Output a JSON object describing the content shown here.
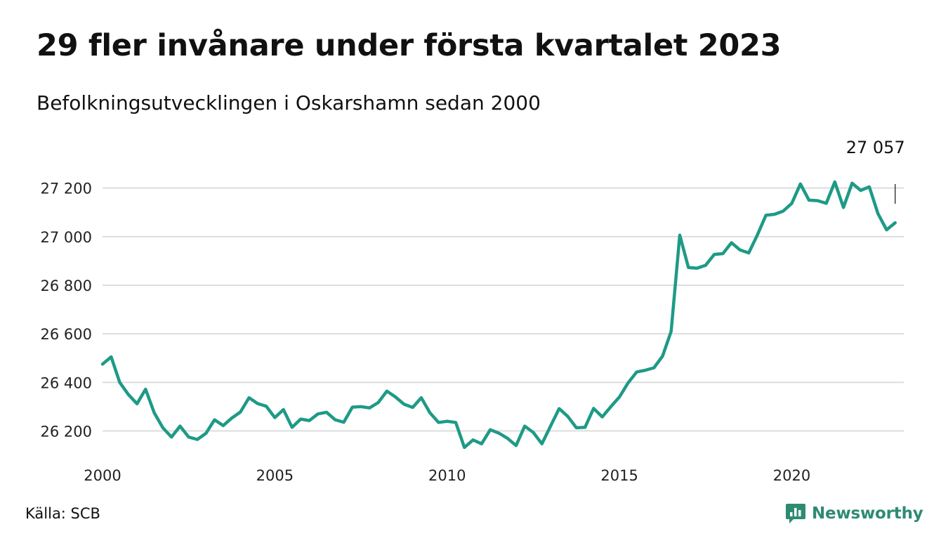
{
  "header": {
    "title": "29 fler invånare under första kvartalet 2023",
    "subtitle": "Befolkningsutvecklingen i Oskarshamn sedan 2000"
  },
  "footer": {
    "source": "Källa: SCB",
    "brand": "Newsworthy"
  },
  "colors": {
    "line": "#1e9a86",
    "grid": "#dddddd",
    "brand": "#2e8b72"
  },
  "icons": {
    "brand_logo": "newsworthy-logo-icon"
  },
  "chart_data": {
    "type": "line",
    "grid": true,
    "legend": "none",
    "xlim": [
      2000,
      2023.25
    ],
    "ylim": [
      26100,
      27280
    ],
    "x_ticks": [
      {
        "value": 2000,
        "label": "2000"
      },
      {
        "value": 2005,
        "label": "2005"
      },
      {
        "value": 2010,
        "label": "2010"
      },
      {
        "value": 2015,
        "label": "2015"
      },
      {
        "value": 2020,
        "label": "2020"
      }
    ],
    "y_ticks": [
      {
        "value": 26200,
        "label": "26 200"
      },
      {
        "value": 26400,
        "label": "26 400"
      },
      {
        "value": 26600,
        "label": "26 600"
      },
      {
        "value": 26800,
        "label": "26 800"
      },
      {
        "value": 27000,
        "label": "27 000"
      },
      {
        "value": 27200,
        "label": "27 200"
      }
    ],
    "annotation": {
      "x": 2023.0,
      "label": "27 057"
    },
    "series": [
      {
        "x": [
          2000.0,
          2000.25,
          2000.5,
          2000.75,
          2001.0,
          2001.25,
          2001.5,
          2001.75,
          2002.0,
          2002.25,
          2002.5,
          2002.75,
          2003.0,
          2003.25,
          2003.5,
          2003.75,
          2004.0,
          2004.25,
          2004.5,
          2004.75,
          2005.0,
          2005.25,
          2005.5,
          2005.75,
          2006.0,
          2006.25,
          2006.5,
          2006.75,
          2007.0,
          2007.25,
          2007.5,
          2007.75,
          2008.0,
          2008.25,
          2008.5,
          2008.75,
          2009.0,
          2009.25,
          2009.5,
          2009.75,
          2010.0,
          2010.25,
          2010.5,
          2010.75,
          2011.0,
          2011.25,
          2011.5,
          2011.75,
          2012.0,
          2012.25,
          2012.5,
          2012.75,
          2013.0,
          2013.25,
          2013.5,
          2013.75,
          2014.0,
          2014.25,
          2014.5,
          2014.75,
          2015.0,
          2015.25,
          2015.5,
          2015.75,
          2016.0,
          2016.25,
          2016.5,
          2016.75,
          2017.0,
          2017.25,
          2017.5,
          2017.75,
          2018.0,
          2018.25,
          2018.5,
          2018.75,
          2019.0,
          2019.25,
          2019.5,
          2019.75,
          2020.0,
          2020.25,
          2020.5,
          2020.75,
          2021.0,
          2021.25,
          2021.5,
          2021.75,
          2022.0,
          2022.25,
          2022.5,
          2022.75,
          2023.0
        ],
        "values": [
          26475,
          26505,
          26400,
          26350,
          26312,
          26372,
          26275,
          26213,
          26175,
          26220,
          26175,
          26165,
          26190,
          26246,
          26222,
          26253,
          26278,
          26337,
          26313,
          26302,
          26255,
          26288,
          26215,
          26249,
          26243,
          26270,
          26277,
          26246,
          26236,
          26298,
          26300,
          26295,
          26317,
          26364,
          26340,
          26310,
          26297,
          26337,
          26275,
          26235,
          26240,
          26235,
          26132,
          26163,
          26147,
          26205,
          26191,
          26170,
          26140,
          26220,
          26194,
          26147,
          26220,
          26292,
          26260,
          26213,
          26215,
          26293,
          26258,
          26300,
          26340,
          26398,
          26443,
          26450,
          26460,
          26508,
          26610,
          27006,
          26873,
          26870,
          26882,
          26927,
          26930,
          26975,
          26945,
          26933,
          27006,
          27088,
          27092,
          27105,
          27137,
          27217,
          27150,
          27148,
          27137,
          27225,
          27120,
          27220,
          27190,
          27205,
          27095,
          27028,
          27057
        ]
      }
    ]
  }
}
